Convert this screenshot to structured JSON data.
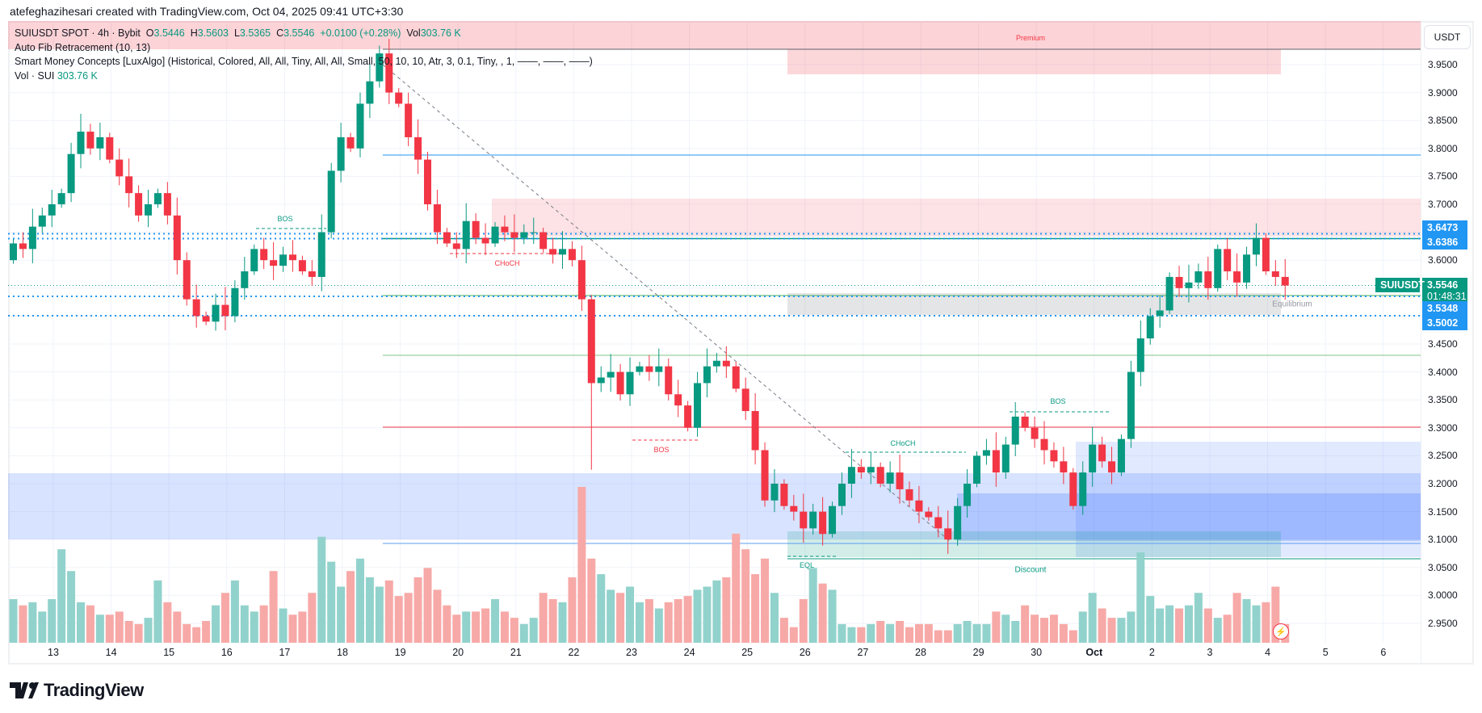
{
  "credit": "atefeghazihesari created with TradingView.com, Oct 04, 2025 09:41 UTC+3:30",
  "legend": {
    "symbol": "SUIUSDT SPOT · 4h · Bybit",
    "o_label": "O",
    "o": "3.5446",
    "h_label": "H",
    "h": "3.5603",
    "l_label": "L",
    "l": "3.5365",
    "c_label": "C",
    "c": "3.5546",
    "change": "+0.0100 (+0.28%)",
    "vol_label": "Vol",
    "vol": "303.76 K",
    "ind1": "Auto Fib Retracement (10, 13)",
    "ind2": "Smart Money Concepts [LuxAlgo] (Historical, Colored, All, All, Tiny, All, All, Small, 50, 10, 10, Atr, 3, 0.1, Tiny, , 1, ——, ——, ——)",
    "ind3": "Vol · SUI",
    "ind3_val": "303.76 K"
  },
  "axis": {
    "currency": "USDT",
    "symbol_tag": "SUIUSDT",
    "countdown": "01:48:31",
    "badges": [
      {
        "value": "3.6473",
        "color": "#2196f3"
      },
      {
        "value": "3.6386",
        "color": "#2196f3"
      },
      {
        "value": "3.5546",
        "color": "#089981"
      },
      {
        "value": "3.5348",
        "color": "#2196f3"
      },
      {
        "value": "3.5002",
        "color": "#2196f3"
      }
    ]
  },
  "zones": {
    "premium": "Premium",
    "equilibrium": "Equilibrium",
    "discount": "Discount",
    "bos1": "BOS",
    "choch1": "CHoCH",
    "bos2": "BOS",
    "choch2": "CHoCH",
    "bos3": "BOS",
    "eql": "EQL"
  },
  "brand": "TradingView",
  "colors": {
    "up": "#089981",
    "down": "#f23645",
    "vol_up": "#92d2cc",
    "vol_down": "#f7a9a7"
  },
  "chart_data": {
    "type": "candlestick",
    "title": "SUIUSDT SPOT · 4h · Bybit",
    "ylim": [
      2.92,
      4.0
    ],
    "y_ticks": [
      "3.9500",
      "3.9000",
      "3.8500",
      "3.8000",
      "3.7500",
      "3.7000",
      "3.6500",
      "3.6000",
      "3.5500",
      "3.5000",
      "3.4500",
      "3.4000",
      "3.3500",
      "3.3000",
      "3.2500",
      "3.2000",
      "3.1500",
      "3.1000",
      "3.0500",
      "3.0000",
      "2.9500"
    ],
    "x_ticks": [
      "13",
      "14",
      "15",
      "16",
      "17",
      "18",
      "19",
      "20",
      "21",
      "22",
      "23",
      "24",
      "25",
      "26",
      "27",
      "28",
      "29",
      "30",
      "Oct",
      "2",
      "3",
      "4",
      "5",
      "6"
    ],
    "first_open": 3.6,
    "closes": [
      3.63,
      3.62,
      3.66,
      3.68,
      3.7,
      3.72,
      3.79,
      3.83,
      3.8,
      3.82,
      3.78,
      3.75,
      3.72,
      3.68,
      3.7,
      3.72,
      3.68,
      3.6,
      3.53,
      3.5,
      3.49,
      3.52,
      3.5,
      3.55,
      3.58,
      3.62,
      3.6,
      3.59,
      3.61,
      3.6,
      3.58,
      3.57,
      3.65,
      3.76,
      3.82,
      3.8,
      3.88,
      3.92,
      3.97,
      3.9,
      3.88,
      3.82,
      3.78,
      3.7,
      3.65,
      3.63,
      3.62,
      3.67,
      3.64,
      3.63,
      3.66,
      3.65,
      3.64,
      3.65,
      3.65,
      3.62,
      3.61,
      3.62,
      3.6,
      3.53,
      3.38,
      3.39,
      3.4,
      3.36,
      3.4,
      3.41,
      3.4,
      3.41,
      3.36,
      3.34,
      3.3,
      3.38,
      3.41,
      3.42,
      3.41,
      3.37,
      3.33,
      3.26,
      3.17,
      3.2,
      3.16,
      3.15,
      3.12,
      3.15,
      3.11,
      3.16,
      3.2,
      3.23,
      3.22,
      3.23,
      3.2,
      3.22,
      3.19,
      3.17,
      3.15,
      3.14,
      3.12,
      3.1,
      3.16,
      3.2,
      3.25,
      3.26,
      3.22,
      3.27,
      3.32,
      3.3,
      3.28,
      3.26,
      3.24,
      3.22,
      3.16,
      3.22,
      3.27,
      3.24,
      3.22,
      3.28,
      3.4,
      3.46,
      3.5,
      3.51,
      3.57,
      3.55,
      3.56,
      3.58,
      3.55,
      3.62,
      3.58,
      3.56,
      3.61,
      3.64,
      3.58,
      3.57,
      3.5546
    ],
    "volumes_k": [
      700,
      600,
      650,
      500,
      700,
      1500,
      1150,
      650,
      600,
      450,
      450,
      500,
      350,
      300,
      400,
      1000,
      650,
      500,
      300,
      250,
      350,
      600,
      800,
      1000,
      600,
      500,
      600,
      1150,
      550,
      450,
      500,
      800,
      1700,
      1300,
      900,
      1150,
      1350,
      1050,
      900,
      1000,
      750,
      800,
      1050,
      1200,
      850,
      600,
      450,
      500,
      500,
      550,
      700,
      500,
      400,
      300,
      400,
      800,
      700,
      650,
      1050,
      2500,
      1350,
      1100,
      850,
      800,
      900,
      650,
      700,
      550,
      650,
      700,
      750,
      850,
      900,
      1000,
      1050,
      1750,
      1500,
      1100,
      1350,
      800,
      400,
      250,
      700,
      1200,
      950,
      850,
      300,
      250,
      250,
      300,
      350,
      300,
      350,
      250,
      300,
      300,
      200,
      200,
      300,
      350,
      300,
      300,
      500,
      450,
      350,
      600,
      450,
      400,
      450,
      300,
      200,
      500,
      800,
      550,
      400,
      400,
      500,
      1450,
      750,
      550,
      600,
      550,
      600,
      800,
      550,
      400,
      450,
      800,
      700,
      600,
      650,
      900,
      300,
      250,
      303.76
    ]
  }
}
